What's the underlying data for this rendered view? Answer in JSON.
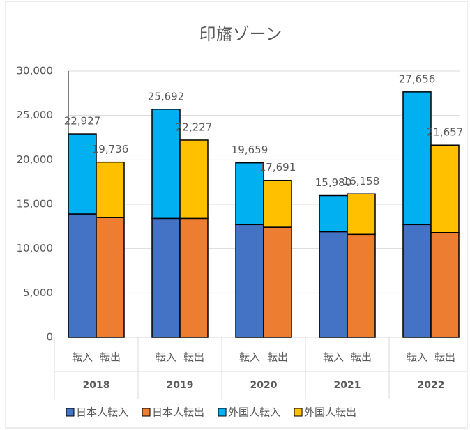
{
  "chart_data": {
    "type": "stacked-bar",
    "title": "印旛ゾーン",
    "groups": [
      "2018",
      "2019",
      "2020",
      "2021",
      "2022"
    ],
    "categories": [
      "転入",
      "転出",
      "転入",
      "転出",
      "転入",
      "転出",
      "転入",
      "転出",
      "転入",
      "転出"
    ],
    "series": [
      {
        "name": "日本人転入",
        "color": "#4472c4",
        "values": [
          13900,
          null,
          13400,
          null,
          12700,
          null,
          11900,
          null,
          12700,
          null
        ]
      },
      {
        "name": "日本人転出",
        "color": "#ed7d31",
        "values": [
          null,
          13500,
          null,
          13400,
          null,
          12400,
          null,
          11600,
          null,
          11800
        ]
      },
      {
        "name": "外国人転入",
        "color": "#00b0f0",
        "values": [
          9027,
          null,
          12292,
          null,
          6959,
          null,
          4080,
          null,
          14956,
          null
        ]
      },
      {
        "name": "外国人転出",
        "color": "#ffc000",
        "values": [
          null,
          6236,
          null,
          8827,
          null,
          5291,
          null,
          4558,
          null,
          9857
        ]
      }
    ],
    "totals": {
      "values": [
        22927,
        19736,
        25692,
        22227,
        19659,
        17691,
        15980,
        16158,
        27656,
        21657
      ],
      "value_labels": [
        "22,927",
        "19,736",
        "25,692",
        "22,227",
        "19,659",
        "17,691",
        "15,980",
        "16,158",
        "27,656",
        "21,657"
      ]
    },
    "ylim": [
      0,
      30000
    ],
    "yticks": [
      0,
      {
        "value": 5000,
        "label": "5,000"
      },
      {
        "value": 10000,
        "label": "10,000"
      },
      {
        "value": 15000,
        "label": "15,000"
      },
      {
        "value": 20000,
        "label": "20,000"
      },
      {
        "value": 25000,
        "label": "25,000"
      },
      {
        "value": 30000,
        "label": "30,000"
      }
    ],
    "grid": true,
    "legend": "bottom"
  }
}
